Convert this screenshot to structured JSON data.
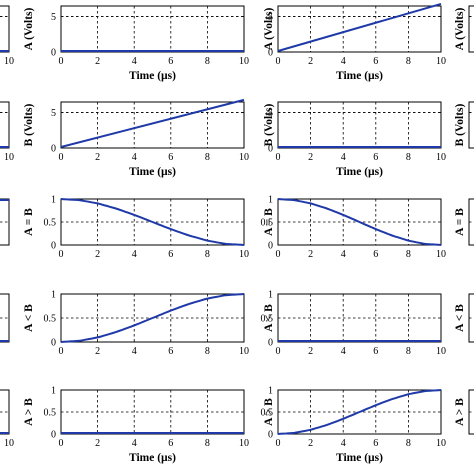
{
  "chart_data": [
    {
      "id": "c1",
      "type": "line",
      "ylabel": "",
      "xlabel": "",
      "xlim": [
        0,
        10
      ],
      "ylim": [
        0,
        6
      ],
      "xticks": [
        10
      ],
      "yticks": [],
      "series": [
        {
          "x": [
            0,
            10
          ],
          "y": [
            0,
            0
          ]
        }
      ]
    },
    {
      "id": "c2",
      "type": "line",
      "ylabel": "A (Volts)",
      "xlabel": "Time (µs)",
      "xlim": [
        0,
        10
      ],
      "ylim": [
        0,
        6.5
      ],
      "xticks": [
        0,
        2,
        4,
        6,
        8,
        10
      ],
      "yticks": [
        0,
        5
      ],
      "series": [
        {
          "x": [
            0,
            10
          ],
          "y": [
            0,
            0
          ]
        }
      ]
    },
    {
      "id": "c3",
      "type": "line",
      "ylabel": "A (Volts)",
      "xlabel": "Time (µs)",
      "xlim": [
        0,
        10
      ],
      "ylim": [
        0,
        6.5
      ],
      "xticks": [
        0,
        2,
        4,
        6,
        8,
        10
      ],
      "yticks": [
        0,
        5
      ],
      "series": [
        {
          "x": [
            0,
            10
          ],
          "y": [
            0,
            6.8
          ]
        }
      ]
    },
    {
      "id": "c4",
      "type": "line",
      "ylabel": "A (Volts)",
      "xlabel": "",
      "xlim": [
        0,
        10
      ],
      "ylim": [
        0,
        6.5
      ],
      "xticks": [],
      "yticks": [],
      "series": []
    },
    {
      "id": "c5",
      "type": "line",
      "ylabel": "",
      "xlabel": "",
      "xlim": [
        0,
        10
      ],
      "ylim": [
        0,
        6
      ],
      "xticks": [
        10
      ],
      "yticks": [],
      "series": [
        {
          "x": [
            0,
            10
          ],
          "y": [
            0,
            0
          ]
        }
      ]
    },
    {
      "id": "c6",
      "type": "line",
      "ylabel": "B (Volts)",
      "xlabel": "Time (µs)",
      "xlim": [
        0,
        10
      ],
      "ylim": [
        0,
        6.5
      ],
      "xticks": [
        0,
        2,
        4,
        6,
        8,
        10
      ],
      "yticks": [
        0,
        5
      ],
      "series": [
        {
          "x": [
            0,
            10
          ],
          "y": [
            0,
            6.8
          ]
        }
      ]
    },
    {
      "id": "c7",
      "type": "line",
      "ylabel": "B (Volts)",
      "xlabel": "Time (µs)",
      "xlim": [
        0,
        10
      ],
      "ylim": [
        0,
        6.5
      ],
      "xticks": [
        0,
        2,
        4,
        6,
        8,
        10
      ],
      "yticks": [
        0,
        5
      ],
      "series": [
        {
          "x": [
            0,
            10
          ],
          "y": [
            0,
            0
          ]
        }
      ]
    },
    {
      "id": "c8",
      "type": "line",
      "ylabel": "B (Volts)",
      "xlabel": "",
      "xlim": [
        0,
        10
      ],
      "ylim": [
        0,
        6.5
      ],
      "xticks": [],
      "yticks": [],
      "series": []
    },
    {
      "id": "c9",
      "type": "line",
      "ylabel": "",
      "xlabel": "",
      "xlim": [
        0,
        10
      ],
      "ylim": [
        0,
        1
      ],
      "xticks": [],
      "yticks": [],
      "series": [
        {
          "x": [
            0,
            10
          ],
          "y": [
            1,
            1
          ]
        }
      ]
    },
    {
      "id": "c10",
      "type": "line",
      "ylabel": "A = B",
      "xlabel": "",
      "xlim": [
        0,
        10
      ],
      "ylim": [
        0,
        1
      ],
      "xticks": [
        0,
        2,
        4,
        6,
        8,
        10
      ],
      "yticks": [
        0,
        0.5,
        1
      ],
      "series": [
        {
          "x": [
            0,
            1,
            2,
            3,
            4,
            5,
            6,
            7,
            8,
            9,
            10
          ],
          "y": [
            1.0,
            0.976,
            0.905,
            0.794,
            0.655,
            0.5,
            0.345,
            0.206,
            0.095,
            0.024,
            0.0
          ]
        }
      ]
    },
    {
      "id": "c11",
      "type": "line",
      "ylabel": "A = B",
      "xlabel": "",
      "xlim": [
        0,
        10
      ],
      "ylim": [
        0,
        1
      ],
      "xticks": [
        0,
        2,
        4,
        6,
        8,
        10
      ],
      "yticks": [
        0,
        0.5,
        1
      ],
      "series": [
        {
          "x": [
            0,
            1,
            2,
            3,
            4,
            5,
            6,
            7,
            8,
            9,
            10
          ],
          "y": [
            1.0,
            0.976,
            0.905,
            0.794,
            0.655,
            0.5,
            0.345,
            0.206,
            0.095,
            0.024,
            0.0
          ]
        }
      ]
    },
    {
      "id": "c12",
      "type": "line",
      "ylabel": "A = B",
      "xlabel": "",
      "xlim": [
        0,
        10
      ],
      "ylim": [
        0,
        1
      ],
      "xticks": [],
      "yticks": [],
      "series": []
    },
    {
      "id": "c13",
      "type": "line",
      "ylabel": "",
      "xlabel": "",
      "xlim": [
        0,
        10
      ],
      "ylim": [
        0,
        1
      ],
      "xticks": [],
      "yticks": [],
      "series": [
        {
          "x": [
            0,
            10
          ],
          "y": [
            0,
            0
          ]
        }
      ]
    },
    {
      "id": "c14",
      "type": "line",
      "ylabel": "A < B",
      "xlabel": "",
      "xlim": [
        0,
        10
      ],
      "ylim": [
        0,
        1
      ],
      "xticks": [
        0,
        2,
        4,
        6,
        8,
        10
      ],
      "yticks": [
        0,
        0.5,
        1
      ],
      "series": [
        {
          "x": [
            0,
            1,
            2,
            3,
            4,
            5,
            6,
            7,
            8,
            9,
            10
          ],
          "y": [
            0.0,
            0.024,
            0.095,
            0.206,
            0.345,
            0.5,
            0.655,
            0.794,
            0.905,
            0.976,
            1.0
          ]
        }
      ]
    },
    {
      "id": "c15",
      "type": "line",
      "ylabel": "A < B",
      "xlabel": "",
      "xlim": [
        0,
        10
      ],
      "ylim": [
        0,
        1
      ],
      "xticks": [
        0,
        2,
        4,
        6,
        8,
        10
      ],
      "yticks": [
        0,
        0.5,
        1
      ],
      "series": [
        {
          "x": [
            0,
            10
          ],
          "y": [
            0,
            0
          ]
        }
      ]
    },
    {
      "id": "c16",
      "type": "line",
      "ylabel": "A < B",
      "xlabel": "",
      "xlim": [
        0,
        10
      ],
      "ylim": [
        0,
        1
      ],
      "xticks": [],
      "yticks": [],
      "series": []
    },
    {
      "id": "c17",
      "type": "line",
      "ylabel": "",
      "xlabel": "",
      "xlim": [
        0,
        10
      ],
      "ylim": [
        0,
        1
      ],
      "xticks": [
        10
      ],
      "yticks": [],
      "series": [
        {
          "x": [
            0,
            10
          ],
          "y": [
            0,
            0
          ]
        }
      ]
    },
    {
      "id": "c18",
      "type": "line",
      "ylabel": "A > B",
      "xlabel": "Time (µs)",
      "xlim": [
        0,
        10
      ],
      "ylim": [
        0,
        1
      ],
      "xticks": [
        0,
        2,
        4,
        6,
        8,
        10
      ],
      "yticks": [
        0,
        0.5,
        1
      ],
      "series": [
        {
          "x": [
            0,
            10
          ],
          "y": [
            0,
            0
          ]
        }
      ]
    },
    {
      "id": "c19",
      "type": "line",
      "ylabel": "A > B",
      "xlabel": "Time (µs)",
      "xlim": [
        0,
        10
      ],
      "ylim": [
        0,
        1
      ],
      "xticks": [
        0,
        2,
        4,
        6,
        8,
        10
      ],
      "yticks": [
        0,
        0.5,
        1
      ],
      "series": [
        {
          "x": [
            0,
            1,
            2,
            3,
            4,
            5,
            6,
            7,
            8,
            9,
            10
          ],
          "y": [
            0.0,
            0.024,
            0.095,
            0.206,
            0.345,
            0.5,
            0.655,
            0.794,
            0.905,
            0.976,
            1.0
          ]
        }
      ]
    },
    {
      "id": "c20",
      "type": "line",
      "ylabel": "A > B",
      "xlabel": "",
      "xlim": [
        0,
        10
      ],
      "ylim": [
        0,
        1
      ],
      "xticks": [],
      "yticks": [],
      "series": []
    }
  ]
}
